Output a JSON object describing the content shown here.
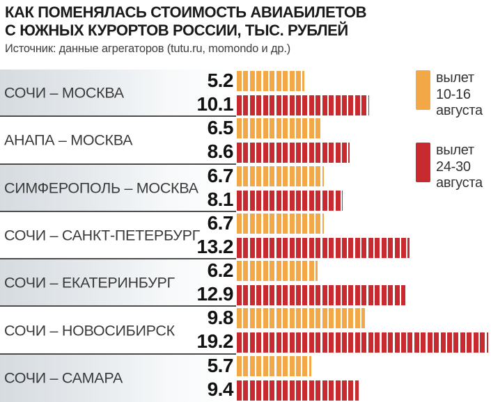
{
  "header": {
    "title_line1": "КАК ПОМЕНЯЛАСЬ СТОИМОСТЬ АВИАБИЛЕТОВ",
    "title_line2": "С ЮЖНЫХ КУРОРТОВ РОССИИ, ТЫС. РУБЛЕЙ",
    "source": "Источник: данные агрегаторов (tutu.ru, momondo и др.)"
  },
  "legend": {
    "early": {
      "line1": "вылет",
      "line2": "10-16",
      "line3": "августа"
    },
    "late": {
      "line1": "вылет",
      "line2": "24-30",
      "line3": "августа"
    }
  },
  "colors": {
    "early_flight": "#F3A847",
    "late_flight": "#C72B2F",
    "divider": "#4b4b4b",
    "alt_row_gradient_start": "#d6dbe0"
  },
  "chart_data": {
    "type": "bar",
    "orientation": "horizontal",
    "title": "КАК ПОМЕНЯЛАСЬ СТОИМОСТЬ АВИАБИЛЕТОВ С ЮЖНЫХ КУРОРТОВ РОССИИ, ТЫС. РУБЛЕЙ",
    "subtitle": "Источник: данные агрегаторов (tutu.ru, momondo и др.)",
    "unit": "тыс. рублей",
    "segment_value": 0.5,
    "xlim": [
      0,
      19.3
    ],
    "grid": false,
    "legend_position": "top-right",
    "categories": [
      "СОЧИ – МОСКВА",
      "АНАПА – МОСКВА",
      "СИМФЕРОПОЛЬ – МОСКВА",
      "СОЧИ – САНКТ-ПЕТЕРБУРГ",
      "СОЧИ – ЕКАТЕРИНБУРГ",
      "СОЧИ – НОВОСИБИРСК",
      "СОЧИ – САМАРА"
    ],
    "series": [
      {
        "name": "вылет 10-16 августа",
        "color": "#F3A847",
        "values": [
          5.2,
          6.5,
          6.7,
          6.7,
          6.2,
          9.8,
          5.7
        ]
      },
      {
        "name": "вылет 24-30 августа",
        "color": "#C72B2F",
        "values": [
          10.1,
          8.6,
          8.1,
          13.2,
          12.9,
          19.2,
          9.4
        ]
      }
    ]
  }
}
